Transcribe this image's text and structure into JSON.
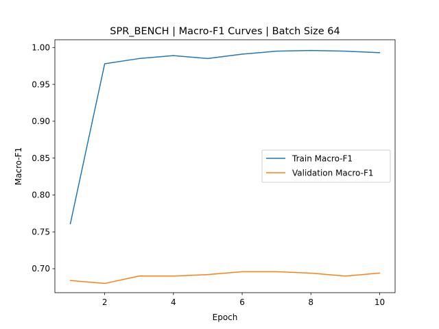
{
  "chart_data": {
    "type": "line",
    "title": "SPR_BENCH | Macro-F1 Curves | Batch Size 64",
    "xlabel": "Epoch",
    "ylabel": "Macro-F1",
    "x": [
      1,
      2,
      3,
      4,
      5,
      6,
      7,
      8,
      9,
      10
    ],
    "xlim": [
      0.55,
      10.45
    ],
    "ylim": [
      0.6675,
      1.0105
    ],
    "xticks": [
      2,
      4,
      6,
      8,
      10
    ],
    "xtick_labels": [
      "2",
      "4",
      "6",
      "8",
      "10"
    ],
    "yticks": [
      0.7,
      0.75,
      0.8,
      0.85,
      0.9,
      0.95,
      1.0
    ],
    "ytick_labels": [
      "0.70",
      "0.75",
      "0.80",
      "0.85",
      "0.90",
      "0.95",
      "1.00"
    ],
    "grid": false,
    "legend_position": "center-right",
    "series": [
      {
        "name": "Train Macro-F1",
        "color": "#1f77b4",
        "values": [
          0.761,
          0.978,
          0.985,
          0.989,
          0.985,
          0.991,
          0.995,
          0.996,
          0.995,
          0.993
        ]
      },
      {
        "name": "Validation Macro-F1",
        "color": "#ff7f0e",
        "values": [
          0.684,
          0.68,
          0.69,
          0.69,
          0.692,
          0.696,
          0.696,
          0.694,
          0.69,
          0.694
        ]
      }
    ]
  }
}
